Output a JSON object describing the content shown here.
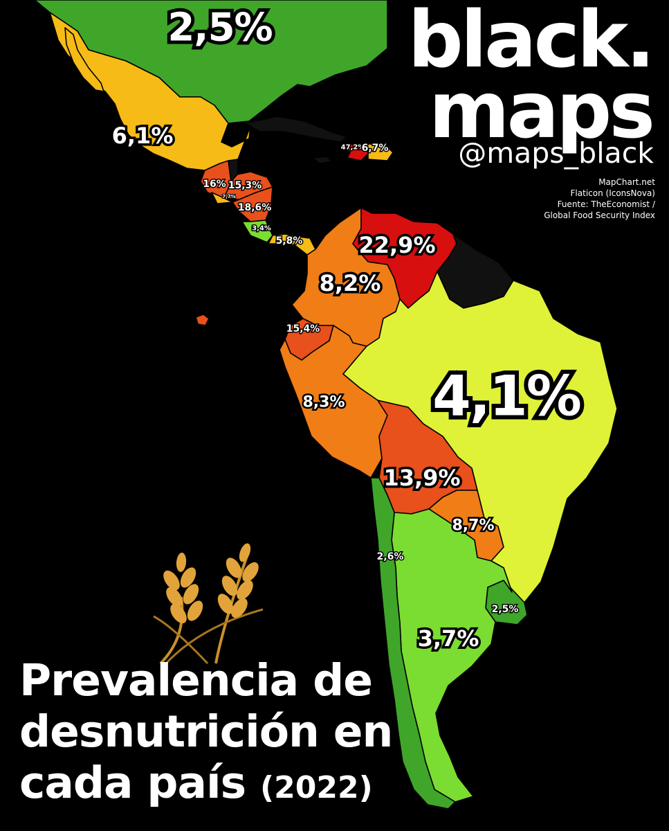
{
  "brand": {
    "line1": "black.",
    "line2": "maps",
    "handle": "@maps_black"
  },
  "credits": [
    "MapChart.net",
    "Flaticon (IconsNova)",
    "Fuente: TheEconomist /",
    "Global Food Security Index"
  ],
  "title": {
    "line1": "Prevalencia de",
    "line2": "desnutrición en",
    "line3": "cada país",
    "year": "(2022)"
  },
  "colors": {
    "background": "#000000",
    "very_low": "#3fa62a",
    "low": "#7bdc32",
    "low_mid": "#dff238",
    "mid": "#f6bb16",
    "mid_high": "#f07d16",
    "high": "#e8501c",
    "very_high": "#d80f0f",
    "no_data": "#111111"
  },
  "icons": [
    "wheat-icon"
  ],
  "countries": [
    {
      "id": "usa",
      "value": "2,5%",
      "level": "very_low"
    },
    {
      "id": "mexico",
      "value": "6,1%",
      "level": "mid"
    },
    {
      "id": "haiti",
      "value": "47,2%",
      "level": "very_high"
    },
    {
      "id": "dominican-republic",
      "value": "6,7%",
      "level": "mid"
    },
    {
      "id": "guatemala",
      "value": "16%",
      "level": "high"
    },
    {
      "id": "honduras",
      "value": "15,3%",
      "level": "high"
    },
    {
      "id": "el-salvador",
      "value": "7,7%",
      "level": "mid"
    },
    {
      "id": "nicaragua",
      "value": "18,6%",
      "level": "high"
    },
    {
      "id": "costa-rica",
      "value": "3,4%",
      "level": "low"
    },
    {
      "id": "panama",
      "value": "5,8%",
      "level": "mid"
    },
    {
      "id": "venezuela",
      "value": "22,9%",
      "level": "very_high"
    },
    {
      "id": "colombia",
      "value": "8,2%",
      "level": "mid_high"
    },
    {
      "id": "ecuador",
      "value": "15,4%",
      "level": "high"
    },
    {
      "id": "peru",
      "value": "8,3%",
      "level": "mid_high"
    },
    {
      "id": "brazil",
      "value": "4,1%",
      "level": "low_mid"
    },
    {
      "id": "bolivia",
      "value": "13,9%",
      "level": "high"
    },
    {
      "id": "paraguay",
      "value": "8,7%",
      "level": "mid_high"
    },
    {
      "id": "chile",
      "value": "2,6%",
      "level": "very_low"
    },
    {
      "id": "argentina",
      "value": "3,7%",
      "level": "low"
    },
    {
      "id": "uruguay",
      "value": "2,5%",
      "level": "very_low"
    }
  ]
}
